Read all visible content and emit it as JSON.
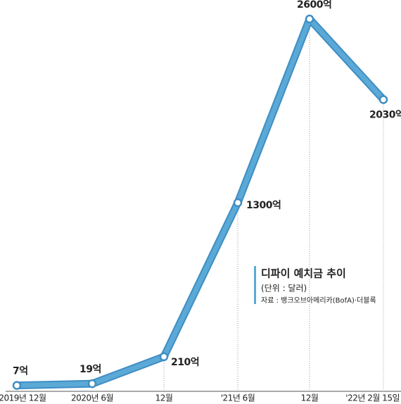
{
  "chart_data": {
    "type": "line",
    "title": "디파이 예치금 추이",
    "subtitle": "(단위 : 달러)",
    "source": "자료 : 뱅크오브아메리카(BofA)·더블록",
    "categories": [
      "2019년 12월",
      "2020년 6월",
      "12월",
      "'21년 6월",
      "12월",
      "'22년 2월 15일"
    ],
    "values": [
      7,
      19,
      210,
      1300,
      2600,
      2030
    ],
    "value_labels": [
      "7억",
      "19억",
      "210억",
      "1300억",
      "2600억",
      "2030억"
    ],
    "color": "#5aa9d6"
  }
}
